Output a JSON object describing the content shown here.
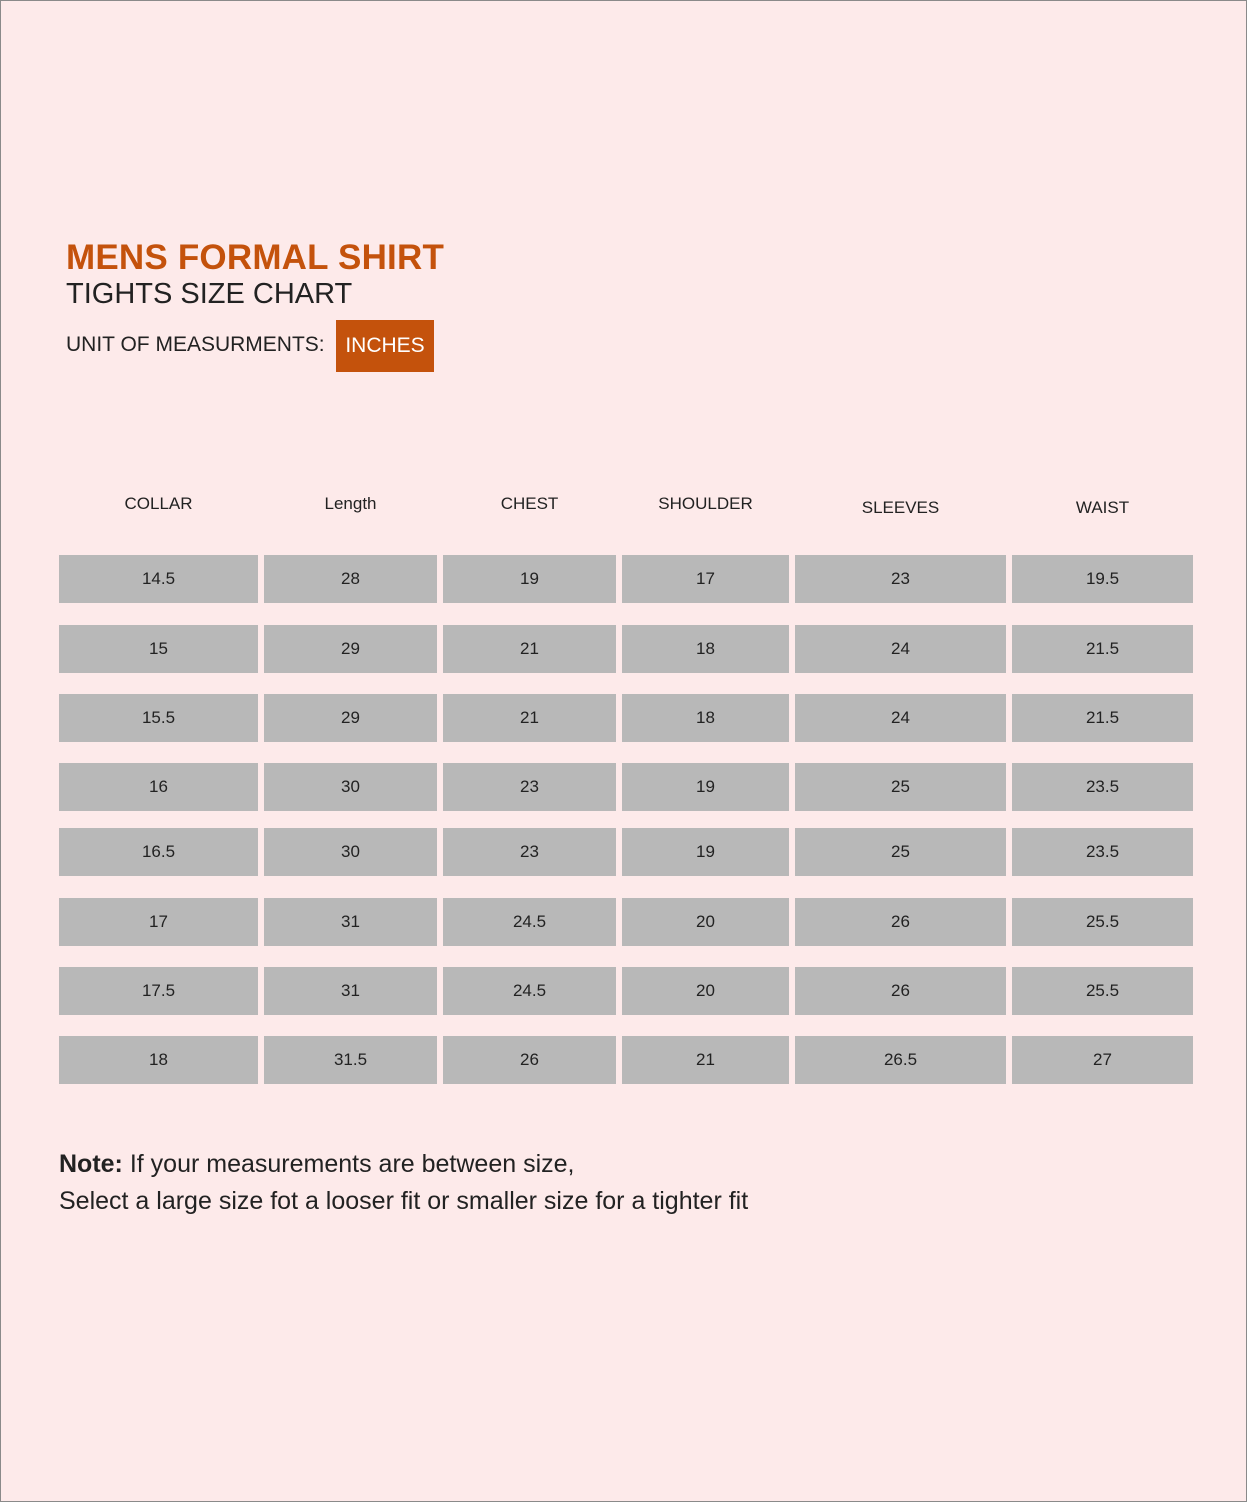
{
  "title": "MENS FORMAL SHIRT",
  "subtitle": "TIGHTS  SIZE CHART",
  "unit_label": "UNIT OF MEASURMENTS:",
  "unit_value": "INCHES",
  "accent_color": "#c4520c",
  "cell_color": "#b8b8b8",
  "table": {
    "headers": [
      "COLLAR",
      "Length",
      "CHEST",
      "SHOULDER",
      "SLEEVES",
      "WAIST"
    ],
    "rows": [
      [
        "14.5",
        "28",
        "19",
        "17",
        "23",
        "19.5"
      ],
      [
        "15",
        "29",
        "21",
        "18",
        "24",
        "21.5"
      ],
      [
        "15.5",
        "29",
        "21",
        "18",
        "24",
        "21.5"
      ],
      [
        "16",
        "30",
        "23",
        "19",
        "25",
        "23.5"
      ],
      [
        "16.5",
        "30",
        "23",
        "19",
        "25",
        "23.5"
      ],
      [
        "17",
        "31",
        "24.5",
        "20",
        "26",
        "25.5"
      ],
      [
        "17.5",
        "31",
        "24.5",
        "20",
        "26",
        "25.5"
      ],
      [
        "18",
        "31.5",
        "26",
        "21",
        "26.5",
        "27"
      ]
    ]
  },
  "note": {
    "label": "Note:",
    "line1": " If your measurements are between size,",
    "line2": "Select a large size fot a looser fit or smaller size for a tighter fit"
  }
}
